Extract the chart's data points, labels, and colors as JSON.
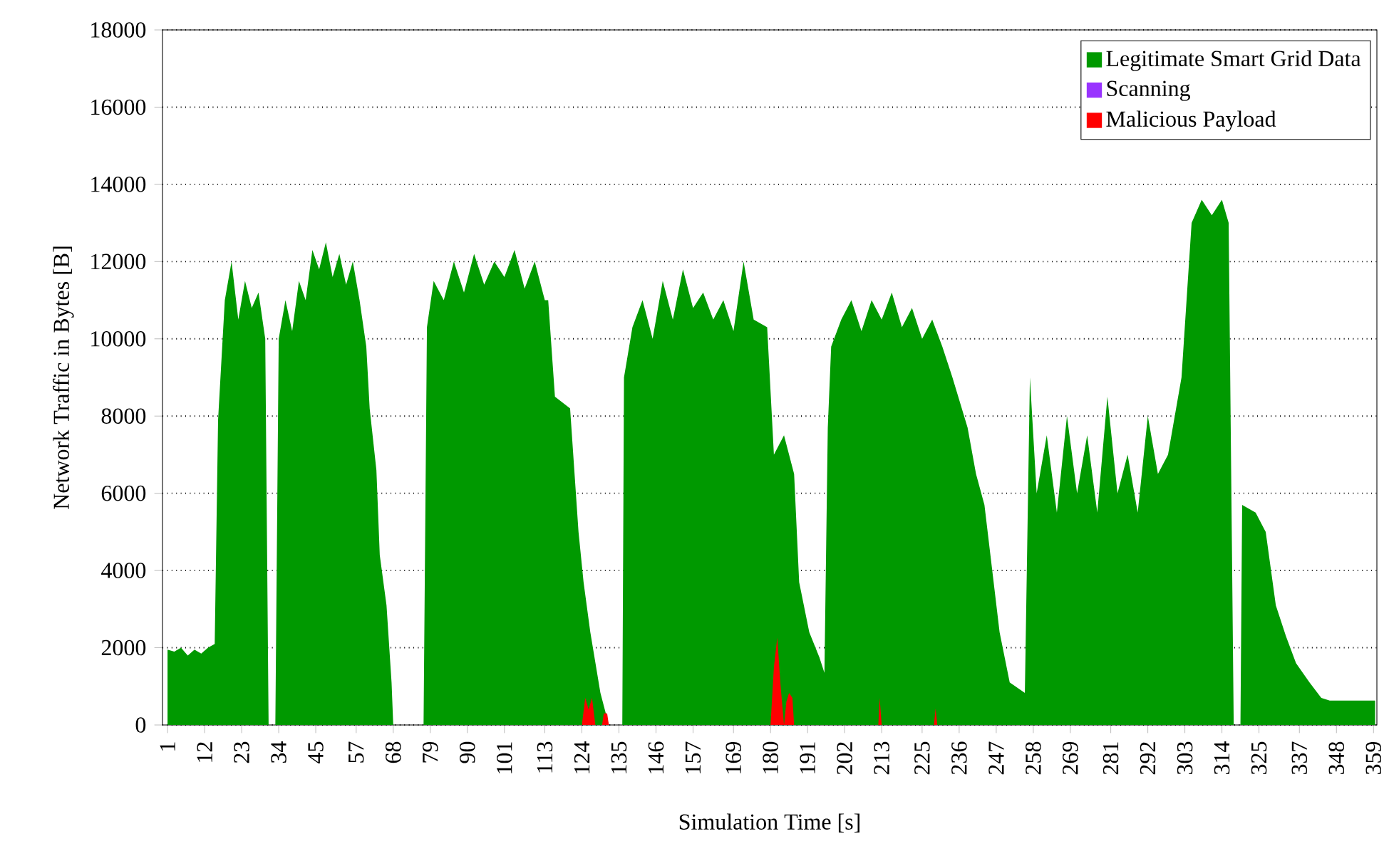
{
  "chart_data": {
    "type": "area",
    "xlabel": "Simulation Time [s]",
    "ylabel": "Network Traffic in Bytes [B]",
    "xlim": [
      -0.5,
      360
    ],
    "ylim": [
      0,
      18000
    ],
    "xticks": [
      1,
      12,
      23,
      34,
      45,
      57,
      68,
      79,
      90,
      101,
      113,
      124,
      135,
      146,
      157,
      169,
      180,
      191,
      202,
      213,
      225,
      236,
      247,
      258,
      269,
      281,
      292,
      303,
      314,
      325,
      337,
      348,
      359
    ],
    "yticks": [
      0,
      2000,
      4000,
      6000,
      8000,
      10000,
      12000,
      14000,
      16000,
      18000
    ],
    "grid": "y",
    "legend": "top right",
    "series": [
      {
        "name": "Legitimate Smart Grid Data",
        "color": "#009900",
        "x": [
          1,
          3,
          5,
          7,
          9,
          11,
          13,
          15,
          16,
          18,
          20,
          22,
          24,
          26,
          28,
          30,
          31,
          33,
          34,
          36,
          38,
          40,
          42,
          44,
          46,
          48,
          50,
          52,
          54,
          56,
          58,
          60,
          61,
          63,
          64,
          66,
          67.5,
          68,
          77,
          78,
          80,
          83,
          86,
          89,
          92,
          95,
          98,
          101,
          104,
          107,
          110,
          113,
          114,
          116,
          120.5,
          123,
          124.5,
          126.5,
          129.5,
          132,
          136,
          136.5,
          139,
          142,
          145,
          148,
          151,
          154,
          157,
          160,
          163,
          166,
          169,
          172,
          175,
          179,
          181,
          184,
          187,
          188.5,
          191.5,
          194.5,
          196,
          197,
          198,
          201,
          204,
          207,
          210,
          213,
          216,
          219,
          222,
          225,
          228,
          231,
          234,
          238.5,
          241,
          243.5,
          248,
          251,
          255.5,
          257,
          259,
          262,
          265,
          268,
          271,
          274,
          277,
          280,
          283,
          286,
          289,
          292,
          295,
          298,
          302,
          305,
          308,
          311,
          314,
          316,
          317.5,
          319.5,
          320,
          324,
          327,
          330,
          333,
          336,
          340,
          343.5,
          346,
          350,
          354,
          358,
          359.5
        ],
        "values": [
          1950,
          1900,
          2000,
          1800,
          1950,
          1850,
          2000,
          2100,
          7900,
          11000,
          12000,
          10500,
          11500,
          10800,
          11200,
          10000,
          0,
          0,
          10000,
          11000,
          10200,
          11500,
          11000,
          12300,
          11800,
          12500,
          11600,
          12200,
          11400,
          12000,
          11000,
          9800,
          8200,
          6600,
          4400,
          3100,
          1100,
          0,
          0,
          10300,
          11500,
          11000,
          12000,
          11200,
          12200,
          11400,
          12000,
          11600,
          12300,
          11300,
          12000,
          11000,
          11000,
          8500,
          8200,
          5000,
          3700,
          2400,
          830,
          0,
          0,
          9000,
          10300,
          11000,
          10000,
          11500,
          10500,
          11800,
          10800,
          11200,
          10500,
          11000,
          10200,
          12000,
          10500,
          10300,
          7000,
          7500,
          6500,
          3700,
          2400,
          1750,
          1350,
          7700,
          9800,
          10500,
          11000,
          10200,
          11000,
          10500,
          11200,
          10300,
          10800,
          10000,
          10500,
          9800,
          9000,
          7700,
          6500,
          5700,
          2400,
          1100,
          830,
          9000,
          6000,
          7500,
          5500,
          8000,
          6000,
          7500,
          5500,
          8500,
          6000,
          7000,
          5500,
          8000,
          6500,
          7000,
          9000,
          13000,
          13600,
          13200,
          13600,
          13000,
          0,
          0,
          5700,
          5500,
          5000,
          3100,
          2300,
          1600,
          1100,
          700,
          630,
          630,
          630,
          630,
          630
        ]
      },
      {
        "name": "Scanning",
        "color": "#9933ff",
        "values": [
          null
        ]
      },
      {
        "name": "Malicious Payload",
        "color": "#ff0000",
        "x": [
          124,
          125,
          126,
          127,
          128,
          130,
          130.5,
          131.5,
          132,
          180,
          181,
          182,
          183,
          184,
          184.7,
          185.5,
          186.5,
          187,
          212,
          212.4,
          213,
          228.5,
          229,
          229.5
        ],
        "values": [
          0,
          700,
          400,
          700,
          0,
          0,
          300,
          300,
          0,
          0,
          1500,
          2260,
          1000,
          0,
          600,
          830,
          700,
          0,
          0,
          700,
          0,
          0,
          430,
          0
        ]
      }
    ]
  }
}
